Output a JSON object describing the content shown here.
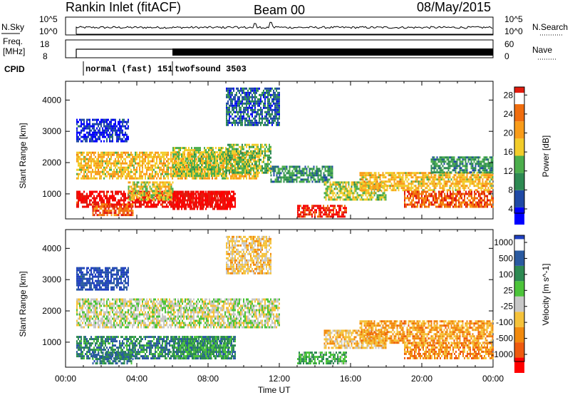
{
  "header": {
    "station": "Rankin Inlet (fitACF)",
    "beam": "Beam 00",
    "date": "08/May/2015"
  },
  "panel_labels": {
    "nsky": "N.Sky",
    "freq_line1": "Freq.",
    "freq_line2": "[MHz]",
    "cpid": "CPID",
    "nsearch": "N.Search",
    "nave": "Nave",
    "nsky_ticks": [
      "10^5",
      "10^0"
    ],
    "nsearch_ticks": [
      "10^5",
      "10^0"
    ],
    "freq_ticks": [
      "18",
      "8"
    ],
    "nave_ticks": [
      "60",
      "0"
    ]
  },
  "cpid_segments": [
    {
      "label": "normal (fast) 151",
      "start_hour": 1.0
    },
    {
      "label": "twofsound 3503",
      "start_hour": 6.0
    }
  ],
  "colors": {
    "power_scale": [
      "#0000ff",
      "#1f49a5",
      "#2d8a52",
      "#4cae4c",
      "#f2cc2a",
      "#f99c19",
      "#f06d0e",
      "#e21b0e",
      "#ff0000"
    ],
    "velocity_scale": [
      "#2040c0",
      "#2a5aa0",
      "#2d8a52",
      "#4cc43a",
      "#c8c8c8",
      "#f5c23a",
      "#f28a0e",
      "#ef5a0e",
      "#ff0000"
    ]
  },
  "chart_data": [
    {
      "type": "heatmap",
      "name": "power",
      "xlabel": "",
      "ylabel": "Slant Range [km]",
      "xlim": [
        0,
        24
      ],
      "ylim": [
        200,
        4600
      ],
      "yticks": [
        1000,
        2000,
        3000,
        4000
      ],
      "colorbar": {
        "label": "Power [dB]",
        "tick_labels": [
          "4",
          "8",
          "12",
          "16",
          "20",
          "24",
          "28"
        ]
      },
      "bands": [
        {
          "x": [
            0.6,
            10.8
          ],
          "y": [
            1500,
            2350
          ],
          "v": 0.55
        },
        {
          "x": [
            0.6,
            9.5
          ],
          "y": [
            600,
            1100
          ],
          "v": 0.9
        },
        {
          "x": [
            1.5,
            3.8
          ],
          "y": [
            300,
            700
          ],
          "v": 0.75
        },
        {
          "x": [
            3.5,
            6.0
          ],
          "y": [
            800,
            1400
          ],
          "v": 0.5
        },
        {
          "x": [
            6.0,
            9.3
          ],
          "y": [
            500,
            1100
          ],
          "v": 0.92
        },
        {
          "x": [
            6.0,
            9.0
          ],
          "y": [
            1600,
            2500
          ],
          "v": 0.45
        },
        {
          "x": [
            9.0,
            11.5
          ],
          "y": [
            1700,
            2600
          ],
          "v": 0.4
        },
        {
          "x": [
            11.5,
            15.0
          ],
          "y": [
            1400,
            1900
          ],
          "v": 0.3
        },
        {
          "x": [
            13.0,
            15.8
          ],
          "y": [
            300,
            650
          ],
          "v": 0.85
        },
        {
          "x": [
            14.5,
            18.0
          ],
          "y": [
            800,
            1400
          ],
          "v": 0.45
        },
        {
          "x": [
            16.5,
            24.0
          ],
          "y": [
            1100,
            1700
          ],
          "v": 0.55
        },
        {
          "x": [
            19.0,
            24.0
          ],
          "y": [
            600,
            1100
          ],
          "v": 0.75
        },
        {
          "x": [
            20.5,
            24.0
          ],
          "y": [
            1700,
            2200
          ],
          "v": 0.3
        },
        {
          "x": [
            0.6,
            3.5
          ],
          "y": [
            2700,
            3400
          ],
          "v": 0.1
        },
        {
          "x": [
            9.0,
            12.0
          ],
          "y": [
            3200,
            4400
          ],
          "v": 0.2
        }
      ]
    },
    {
      "type": "heatmap",
      "name": "velocity",
      "xlabel": "Time UT",
      "ylabel": "Slant Range [km]",
      "xlim": [
        0,
        24
      ],
      "ylim": [
        200,
        4600
      ],
      "yticks": [
        1000,
        2000,
        3000,
        4000
      ],
      "xticks": [
        "00:00",
        "04:00",
        "08:00",
        "12:00",
        "16:00",
        "20:00",
        "00:00"
      ],
      "colorbar": {
        "label": "Velocity [m s^-1]",
        "tick_labels": [
          "1000",
          "500",
          "100",
          "25",
          "-25",
          "-100",
          "-500",
          "-1000"
        ]
      },
      "bands": [
        {
          "x": [
            0.6,
            12.0
          ],
          "y": [
            1500,
            2400
          ],
          "v": 0.5
        },
        {
          "x": [
            0.6,
            9.5
          ],
          "y": [
            500,
            1200
          ],
          "v": 0.25
        },
        {
          "x": [
            1.5,
            3.8
          ],
          "y": [
            300,
            700
          ],
          "v": 0.22
        },
        {
          "x": [
            6.0,
            9.3
          ],
          "y": [
            500,
            1200
          ],
          "v": 0.3
        },
        {
          "x": [
            13.0,
            15.8
          ],
          "y": [
            300,
            700
          ],
          "v": 0.35
        },
        {
          "x": [
            14.5,
            18.0
          ],
          "y": [
            800,
            1400
          ],
          "v": 0.62
        },
        {
          "x": [
            16.5,
            24.0
          ],
          "y": [
            1000,
            1700
          ],
          "v": 0.68
        },
        {
          "x": [
            19.0,
            24.0
          ],
          "y": [
            500,
            1000
          ],
          "v": 0.72
        },
        {
          "x": [
            0.6,
            3.5
          ],
          "y": [
            2700,
            3400
          ],
          "v": 0.1
        },
        {
          "x": [
            9.0,
            11.5
          ],
          "y": [
            3200,
            4400
          ],
          "v": 0.6
        }
      ]
    }
  ]
}
